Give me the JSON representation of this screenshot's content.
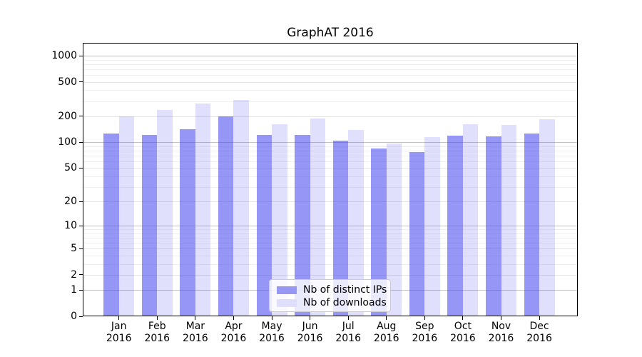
{
  "title": "GraphAT 2016",
  "chart_data": {
    "type": "bar",
    "title": "GraphAT 2016",
    "categories": [
      "Jan 2016",
      "Feb 2016",
      "Mar 2016",
      "Apr 2016",
      "May 2016",
      "Jun 2016",
      "Jul 2016",
      "Aug 2016",
      "Sep 2016",
      "Oct 2016",
      "Nov 2016",
      "Dec 2016"
    ],
    "series": [
      {
        "name": "Nb of distinct IPs",
        "values": [
          127,
          122,
          143,
          201,
          122,
          122,
          104,
          85,
          77,
          119,
          118,
          126
        ]
      },
      {
        "name": "Nb of downloads",
        "values": [
          199,
          238,
          279,
          309,
          163,
          187,
          139,
          96,
          115,
          163,
          158,
          186
        ]
      }
    ],
    "xlabel": "",
    "ylabel": "",
    "y_scale": "log1p",
    "y_ticks": [
      0,
      1,
      2,
      5,
      10,
      20,
      50,
      100,
      200,
      500,
      1000
    ],
    "y_minor_ticks": [
      3,
      4,
      6,
      7,
      8,
      9,
      30,
      40,
      60,
      70,
      80,
      90,
      300,
      400,
      600,
      700,
      800,
      900
    ],
    "ylim": [
      0,
      1400
    ],
    "grid": "on",
    "legend_position": "lower-center"
  },
  "colors": {
    "background": "#ffffff",
    "axis_frame": "#000000",
    "bar_distinct_ips": "rgba(64,64,238,0.55)",
    "bar_downloads": "rgba(64,64,238,0.16)",
    "legend_swatch_distinct_ips": "#9898f4",
    "legend_swatch_downloads": "#dfdffc",
    "grid_decade": "#c3c3c3",
    "grid_level": "#e4e4e4",
    "grid_minor": "#f0f0f0",
    "legend_border": "#cccccc",
    "legend_background": "rgba(255,255,255,0.8)"
  }
}
